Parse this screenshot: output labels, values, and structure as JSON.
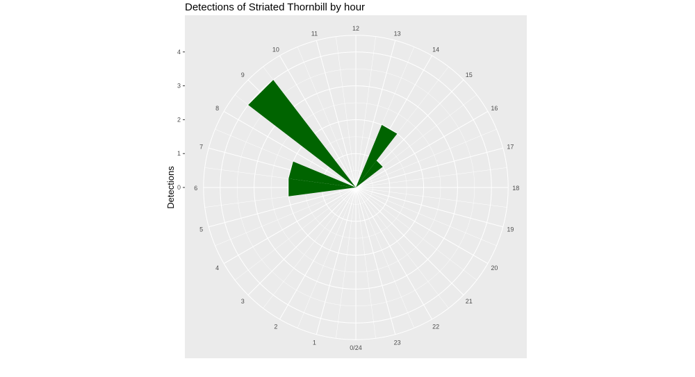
{
  "chart_data": {
    "type": "bar",
    "coord": "polar",
    "title": "Detections of Striated Thornbill by hour",
    "xlabel": "",
    "ylabel": "Detections",
    "categories": [
      "0/24",
      "1",
      "2",
      "3",
      "4",
      "5",
      "6",
      "7",
      "8",
      "9",
      "10",
      "11",
      "12",
      "13",
      "14",
      "15",
      "16",
      "17",
      "18",
      "19",
      "20",
      "21",
      "22",
      "23"
    ],
    "values": [
      0,
      0,
      0,
      0,
      0,
      0,
      2,
      2,
      0,
      4,
      0,
      0,
      0,
      0,
      2,
      1,
      0,
      0,
      0,
      0,
      0,
      0,
      0,
      0
    ],
    "ylim": [
      0,
      4
    ],
    "yticks": [
      "0",
      "1",
      "2",
      "3",
      "4"
    ],
    "grid": true,
    "colors": {
      "bar": "#006400",
      "panel": "#ebebeb",
      "grid": "#ffffff"
    }
  }
}
